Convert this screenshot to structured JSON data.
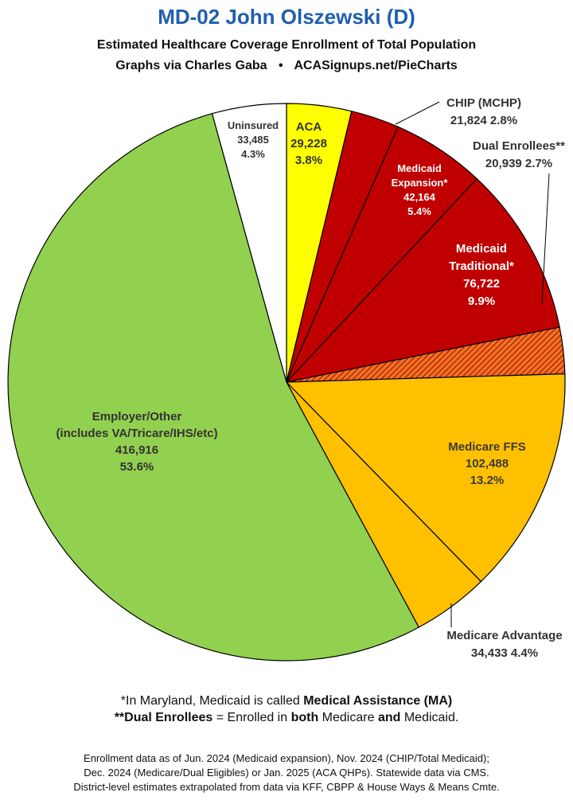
{
  "header": {
    "title": "MD-02 John Olszewski (D)",
    "subtitle": "Estimated Healthcare Coverage Enrollment of Total Population",
    "credit_left": "Graphs via Charles Gaba",
    "credit_sep": "•",
    "credit_right": "ACASignups.net/PieCharts"
  },
  "chart_data": {
    "type": "pie",
    "slices": [
      {
        "label": "ACA",
        "value": 29228,
        "value_text": "29,228",
        "percent": "3.8%",
        "color": "#ffff00"
      },
      {
        "label": "CHIP (MCHP)",
        "value": 21824,
        "value_text": "21,824",
        "percent": "2.8%",
        "color": "#c00000"
      },
      {
        "label": "Medicaid Expansion*",
        "value": 42164,
        "value_text": "42,164",
        "percent": "5.4%",
        "color": "#c00000"
      },
      {
        "label": "Medicaid Traditional*",
        "value": 76722,
        "value_text": "76,722",
        "percent": "9.9%",
        "color": "#c00000"
      },
      {
        "label": "Dual Enrollees**",
        "value": 20939,
        "value_text": "20,939",
        "percent": "2.7%",
        "color": "#e87722",
        "pattern": "hatched"
      },
      {
        "label": "Medicare FFS",
        "value": 102488,
        "value_text": "102,488",
        "percent": "13.2%",
        "color": "#ffc000"
      },
      {
        "label": "Medicare Advantage",
        "value": 34433,
        "value_text": "34,433",
        "percent": "4.4%",
        "color": "#ffc000"
      },
      {
        "label": "Employer/Other (includes VA/Tricare/IHS/etc)",
        "value": 416916,
        "value_text": "416,916",
        "percent": "53.6%",
        "color": "#92d050"
      },
      {
        "label": "Uninsured",
        "value": 33485,
        "value_text": "33,485",
        "percent": "4.3%",
        "color": "#ffffff"
      }
    ],
    "labels": {
      "aca": [
        "ACA",
        "29,228",
        "3.8%"
      ],
      "chip": [
        "CHIP (MCHP)",
        "21,824 2.8%"
      ],
      "expansion": [
        "Medicaid",
        "Expansion*",
        "42,164",
        "5.4%"
      ],
      "traditional": [
        "Medicaid",
        "Traditional*",
        "76,722",
        "9.9%"
      ],
      "dual": [
        "Dual Enrollees**",
        "20,939 2.7%"
      ],
      "ffs": [
        "Medicare FFS",
        "102,488",
        "13.2%"
      ],
      "advantage": [
        "Medicare Advantage",
        "34,433 4.4%"
      ],
      "employer": [
        "Employer/Other",
        "(includes VA/Tricare/IHS/etc)",
        "416,916",
        "53.6%"
      ],
      "uninsured": [
        "Uninsured",
        "33,485",
        "4.3%"
      ]
    }
  },
  "footnotes": {
    "line1_pre": "*In Maryland, Medicaid is called ",
    "line1_bold": "Medical Assistance (MA)",
    "line2_bold1": "**Dual Enrollees",
    "line2_mid1": " = Enrolled in ",
    "line2_bold2": "both",
    "line2_mid2": " Medicare ",
    "line2_bold3": "and",
    "line2_end": " Medicaid."
  },
  "source": {
    "line1": "Enrollment data as of Jun. 2024 (Medicaid expansion), Nov. 2024 (CHIP/Total Medicaid);",
    "line2": "Dec. 2024 (Medicare/Dual Eligibles) or Jan. 2025 (ACA QHPs). Statewide data via CMS.",
    "line3": "District-level estimates extrapolated from data via KFF, CBPP & House Ways & Means Cmte."
  }
}
